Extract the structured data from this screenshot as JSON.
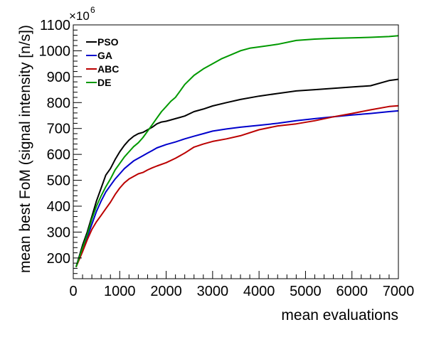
{
  "chart_data": {
    "type": "line",
    "title": "",
    "xlabel": "mean evaluations",
    "ylabel": "mean best FoM (signal intensity [n/s])",
    "y_multiplier_label": "×10",
    "y_multiplier_exponent": "6",
    "xlim": [
      0,
      7000
    ],
    "ylim": [
      120,
      1100
    ],
    "x_ticks": [
      0,
      1000,
      2000,
      3000,
      4000,
      5000,
      6000,
      7000
    ],
    "y_ticks": [
      200,
      300,
      400,
      500,
      600,
      700,
      800,
      900,
      1000,
      1100
    ],
    "grid": false,
    "legend_position": "top-left",
    "series": [
      {
        "name": "PSO",
        "color": "#000000",
        "x": [
          60,
          200,
          300,
          400,
          500,
          600,
          700,
          800,
          900,
          1000,
          1100,
          1200,
          1300,
          1400,
          1500,
          1600,
          1700,
          1800,
          1900,
          2000,
          2200,
          2400,
          2600,
          2800,
          3000,
          3300,
          3600,
          4000,
          4400,
          4800,
          5200,
          5600,
          6000,
          6400,
          6800,
          7000
        ],
        "y": [
          165,
          250,
          300,
          360,
          420,
          470,
          520,
          545,
          580,
          610,
          635,
          655,
          670,
          680,
          685,
          695,
          705,
          718,
          725,
          728,
          738,
          748,
          765,
          775,
          787,
          800,
          812,
          825,
          835,
          845,
          850,
          855,
          860,
          865,
          885,
          890
        ]
      },
      {
        "name": "GA",
        "color": "#0000cc",
        "x": [
          60,
          200,
          300,
          400,
          500,
          600,
          700,
          800,
          900,
          1000,
          1100,
          1200,
          1300,
          1400,
          1500,
          1600,
          1700,
          1800,
          2000,
          2200,
          2400,
          2600,
          2800,
          3000,
          3300,
          3600,
          4000,
          4400,
          4800,
          5200,
          5600,
          6000,
          6400,
          6800,
          7000
        ],
        "y": [
          165,
          240,
          280,
          330,
          380,
          420,
          455,
          480,
          505,
          525,
          545,
          560,
          575,
          585,
          595,
          605,
          615,
          625,
          638,
          648,
          660,
          670,
          680,
          690,
          698,
          705,
          712,
          720,
          730,
          738,
          745,
          752,
          758,
          765,
          768
        ]
      },
      {
        "name": "ABC",
        "color": "#bb0000",
        "x": [
          60,
          200,
          300,
          400,
          500,
          600,
          700,
          800,
          900,
          1000,
          1100,
          1200,
          1300,
          1400,
          1500,
          1600,
          1700,
          1800,
          2000,
          2200,
          2400,
          2600,
          2800,
          3000,
          3300,
          3600,
          4000,
          4400,
          4800,
          5200,
          5600,
          6000,
          6400,
          6800,
          7000
        ],
        "y": [
          165,
          225,
          270,
          310,
          340,
          365,
          390,
          415,
          445,
          470,
          490,
          505,
          515,
          525,
          530,
          540,
          548,
          555,
          568,
          585,
          605,
          628,
          640,
          650,
          660,
          672,
          695,
          710,
          718,
          730,
          745,
          758,
          772,
          785,
          788
        ]
      },
      {
        "name": "DE",
        "color": "#009900",
        "x": [
          60,
          200,
          300,
          400,
          500,
          600,
          700,
          800,
          900,
          1000,
          1100,
          1200,
          1300,
          1400,
          1500,
          1600,
          1700,
          1800,
          1900,
          2000,
          2100,
          2200,
          2300,
          2400,
          2600,
          2800,
          3000,
          3200,
          3400,
          3600,
          3800,
          4000,
          4400,
          4800,
          5200,
          5600,
          6000,
          6400,
          6800,
          7000
        ],
        "y": [
          165,
          240,
          290,
          350,
          400,
          440,
          475,
          505,
          540,
          565,
          590,
          610,
          630,
          645,
          665,
          690,
          715,
          740,
          765,
          785,
          805,
          820,
          845,
          870,
          905,
          930,
          950,
          970,
          985,
          1000,
          1010,
          1015,
          1025,
          1040,
          1045,
          1048,
          1050,
          1052,
          1055,
          1058
        ]
      }
    ]
  }
}
